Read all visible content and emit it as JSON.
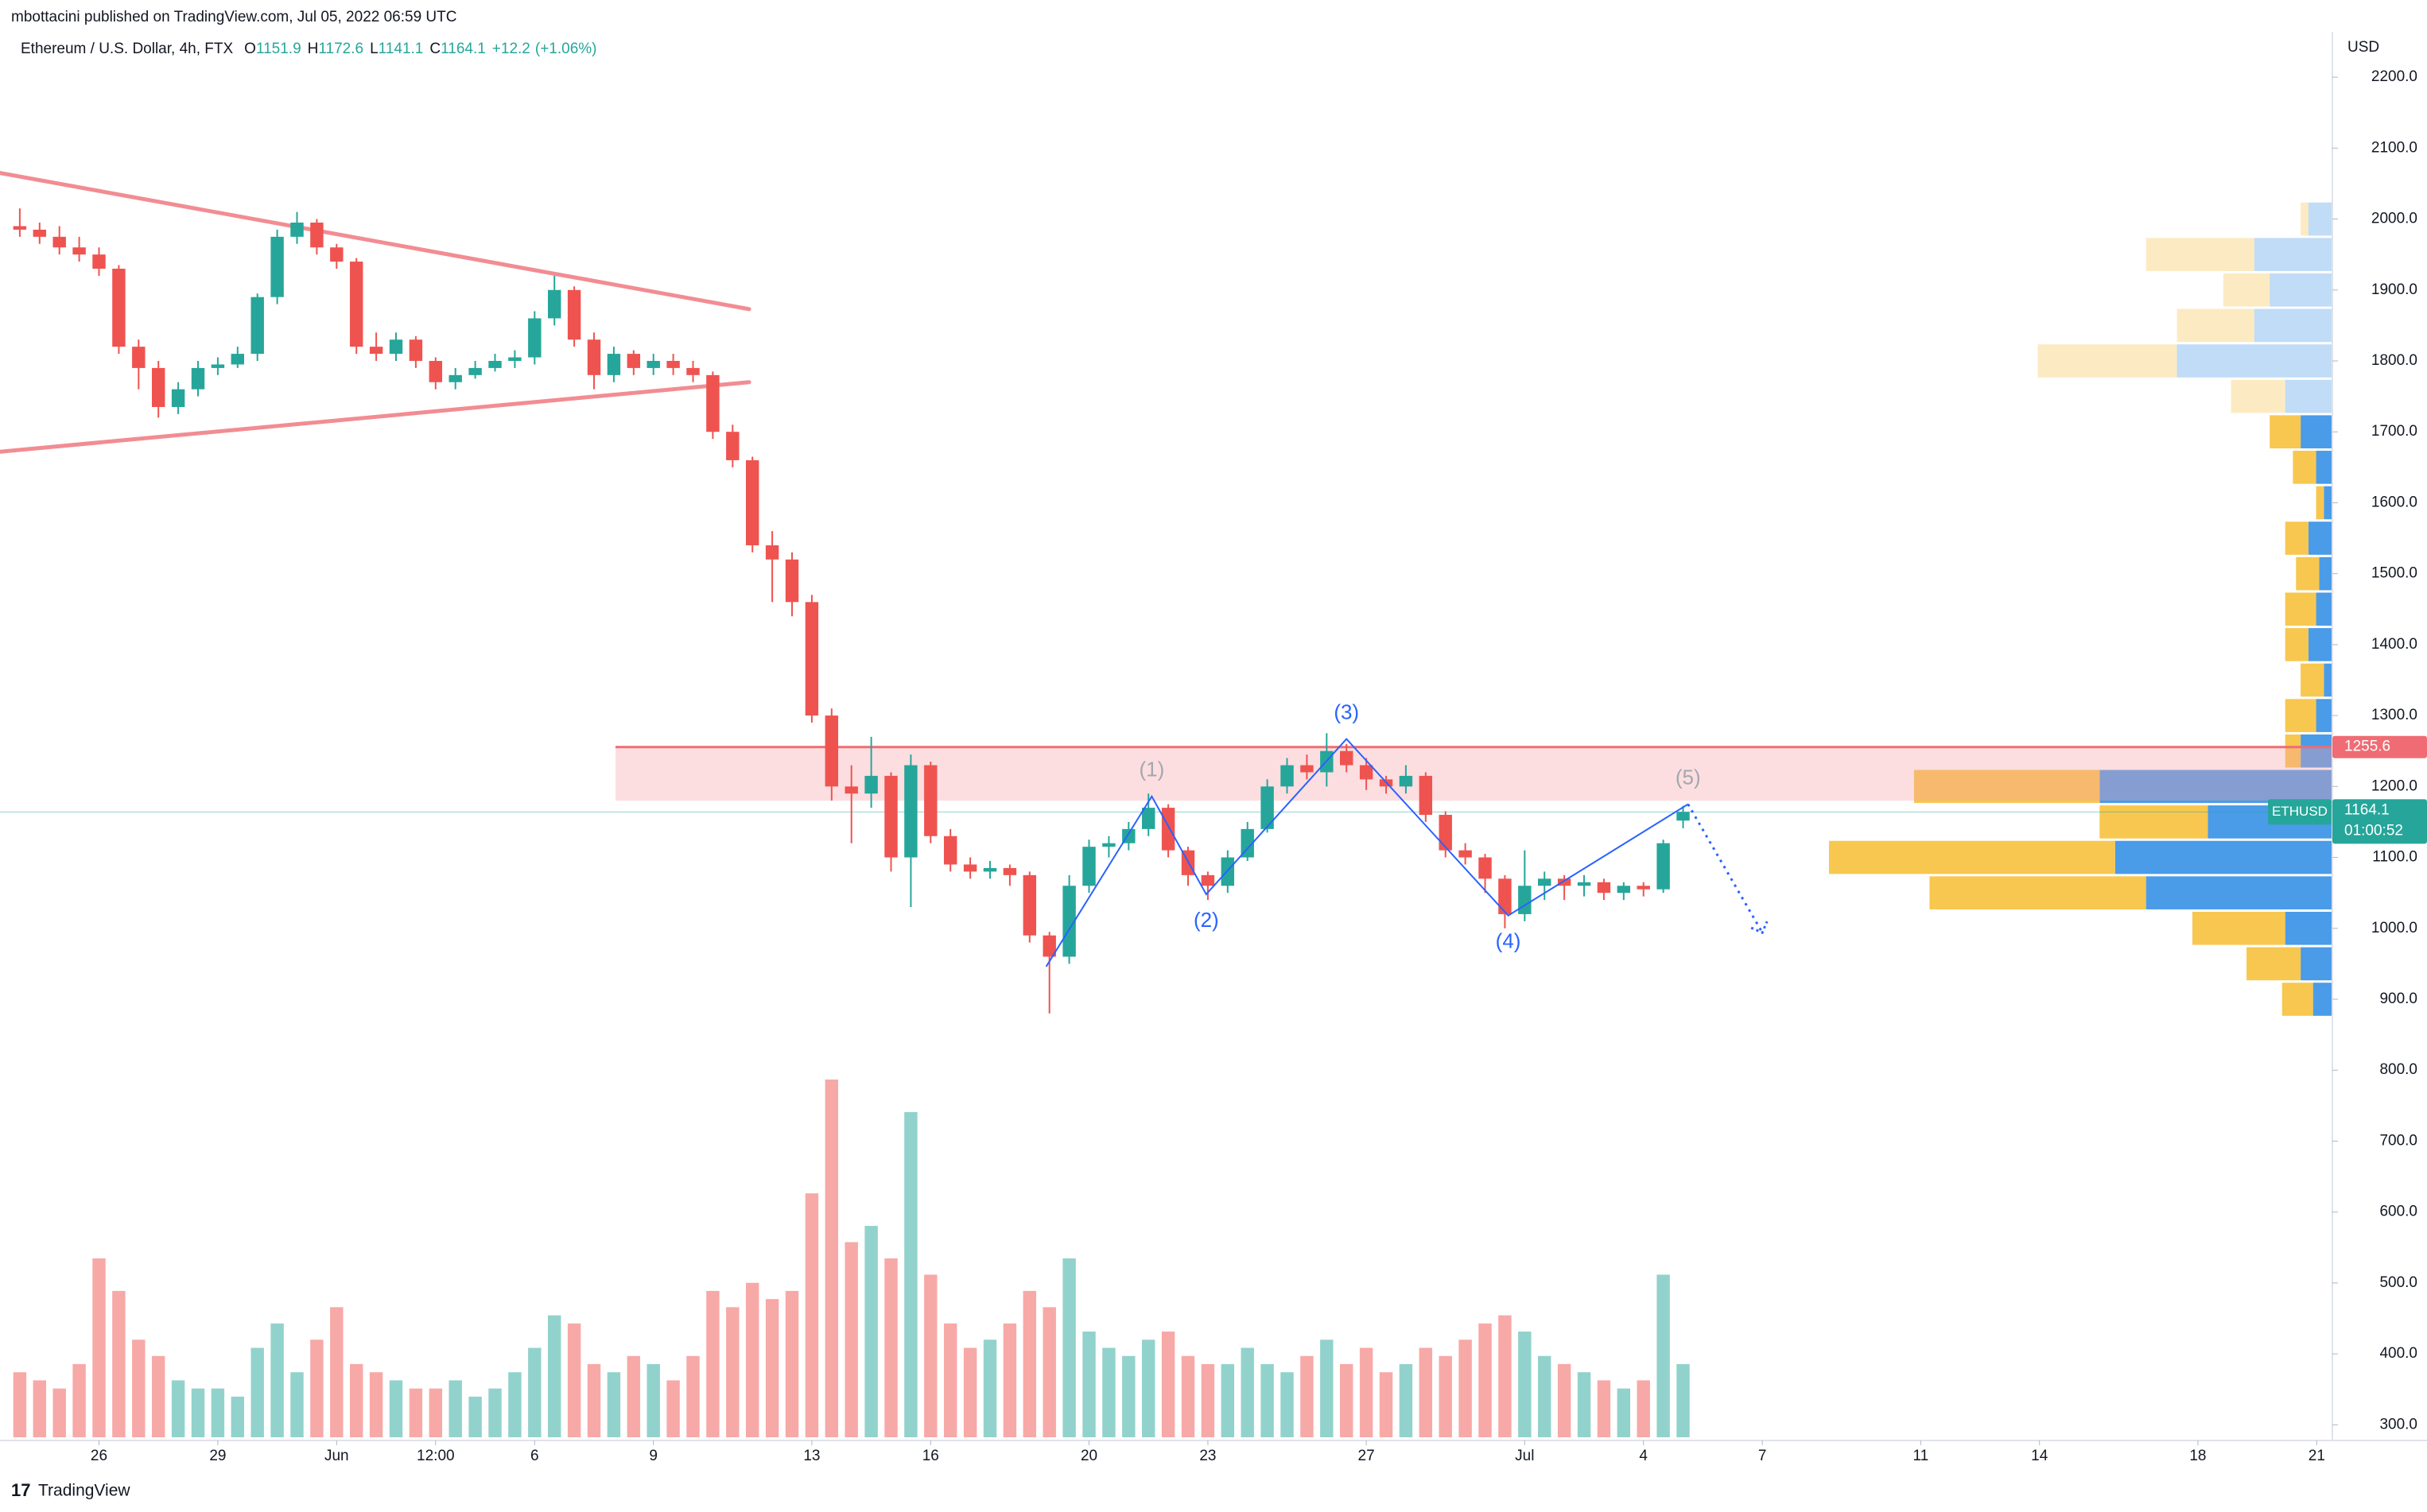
{
  "header": {
    "published": "mbottacini published on TradingView.com, Jul 05, 2022 06:59 UTC",
    "footer": "TradingView"
  },
  "chart_data": {
    "type": "candlestick",
    "legend": {
      "symbol": "Ethereum / U.S. Dollar, 4h, FTX",
      "ohlc": [
        {
          "key": "O",
          "value": 1151.9
        },
        {
          "key": "H",
          "value": 1172.6
        },
        {
          "key": "L",
          "value": 1141.1
        },
        {
          "key": "C",
          "value": 1164.1
        }
      ],
      "change": {
        "value": 12.2,
        "label": "+12.2"
      },
      "change_pct": {
        "value": 1.06,
        "label": "(+1.06%)"
      }
    },
    "currency": "USD",
    "up_color": "#26a69a",
    "down_color": "#ef5350",
    "xlim": [
      "2022-05-23T12:00",
      "2022-07-21T09:00"
    ],
    "xticks": [
      {
        "value": "2022-05-26T00:00",
        "label": "26"
      },
      {
        "value": "2022-05-29T00:00",
        "label": "29"
      },
      {
        "value": "2022-06-01T00:00",
        "label": "Jun"
      },
      {
        "value": "2022-06-03T12:00",
        "label": "12:00"
      },
      {
        "value": "2022-06-06T00:00",
        "label": "6"
      },
      {
        "value": "2022-06-09T00:00",
        "label": "9"
      },
      {
        "value": "2022-06-13T00:00",
        "label": "13"
      },
      {
        "value": "2022-06-16T00:00",
        "label": "16"
      },
      {
        "value": "2022-06-20T00:00",
        "label": "20"
      },
      {
        "value": "2022-06-23T00:00",
        "label": "23"
      },
      {
        "value": "2022-06-27T00:00",
        "label": "27"
      },
      {
        "value": "2022-07-01T00:00",
        "label": "Jul"
      },
      {
        "value": "2022-07-04T00:00",
        "label": "4"
      },
      {
        "value": "2022-07-07T00:00",
        "label": "7"
      },
      {
        "value": "2022-07-11T00:00",
        "label": "11"
      },
      {
        "value": "2022-07-14T00:00",
        "label": "14"
      },
      {
        "value": "2022-07-18T00:00",
        "label": "18"
      },
      {
        "value": "2022-07-21T00:00",
        "label": "21"
      }
    ],
    "ylim": [
      269,
      2264
    ],
    "yticks": [
      {
        "value": 300,
        "label": "300.0"
      },
      {
        "value": 400,
        "label": "400.0"
      },
      {
        "value": 500,
        "label": "500.0"
      },
      {
        "value": 600,
        "label": "600.0"
      },
      {
        "value": 700,
        "label": "700.0"
      },
      {
        "value": 800,
        "label": "800.0"
      },
      {
        "value": 900,
        "label": "900.0"
      },
      {
        "value": 1000,
        "label": "1000.0"
      },
      {
        "value": 1100,
        "label": "1100.0"
      },
      {
        "value": 1200,
        "label": "1200.0"
      },
      {
        "value": 1300,
        "label": "1300.0"
      },
      {
        "value": 1400,
        "label": "1400.0"
      },
      {
        "value": 1500,
        "label": "1500.0"
      },
      {
        "value": 1600,
        "label": "1600.0"
      },
      {
        "value": 1700,
        "label": "1700.0"
      },
      {
        "value": 1800,
        "label": "1800.0"
      },
      {
        "value": 1900,
        "label": "1900.0"
      },
      {
        "value": 2000,
        "label": "2000.0"
      },
      {
        "value": 2100,
        "label": "2100.0"
      },
      {
        "value": 2200,
        "label": "2200.0"
      }
    ],
    "grid": false,
    "x": [
      "2022-05-24T00:00",
      "2022-05-24T12:00",
      "2022-05-25T00:00",
      "2022-05-25T12:00",
      "2022-05-26T00:00",
      "2022-05-26T12:00",
      "2022-05-27T00:00",
      "2022-05-27T12:00",
      "2022-05-28T00:00",
      "2022-05-28T12:00",
      "2022-05-29T00:00",
      "2022-05-29T12:00",
      "2022-05-30T00:00",
      "2022-05-30T12:00",
      "2022-05-31T00:00",
      "2022-05-31T12:00",
      "2022-06-01T00:00",
      "2022-06-01T12:00",
      "2022-06-02T00:00",
      "2022-06-02T12:00",
      "2022-06-03T00:00",
      "2022-06-03T12:00",
      "2022-06-04T00:00",
      "2022-06-04T12:00",
      "2022-06-05T00:00",
      "2022-06-05T12:00",
      "2022-06-06T00:00",
      "2022-06-06T12:00",
      "2022-06-07T00:00",
      "2022-06-07T12:00",
      "2022-06-08T00:00",
      "2022-06-08T12:00",
      "2022-06-09T00:00",
      "2022-06-09T12:00",
      "2022-06-10T00:00",
      "2022-06-10T12:00",
      "2022-06-11T00:00",
      "2022-06-11T12:00",
      "2022-06-12T00:00",
      "2022-06-12T12:00",
      "2022-06-13T00:00",
      "2022-06-13T12:00",
      "2022-06-14T00:00",
      "2022-06-14T12:00",
      "2022-06-15T00:00",
      "2022-06-15T12:00",
      "2022-06-16T00:00",
      "2022-06-16T12:00",
      "2022-06-17T00:00",
      "2022-06-17T12:00",
      "2022-06-18T00:00",
      "2022-06-18T12:00",
      "2022-06-19T00:00",
      "2022-06-19T12:00",
      "2022-06-20T00:00",
      "2022-06-20T12:00",
      "2022-06-21T00:00",
      "2022-06-21T12:00",
      "2022-06-22T00:00",
      "2022-06-22T12:00",
      "2022-06-23T00:00",
      "2022-06-23T12:00",
      "2022-06-24T00:00",
      "2022-06-24T12:00",
      "2022-06-25T00:00",
      "2022-06-25T12:00",
      "2022-06-26T00:00",
      "2022-06-26T12:00",
      "2022-06-27T00:00",
      "2022-06-27T12:00",
      "2022-06-28T00:00",
      "2022-06-28T12:00",
      "2022-06-29T00:00",
      "2022-06-29T12:00",
      "2022-06-30T00:00",
      "2022-06-30T12:00",
      "2022-07-01T00:00",
      "2022-07-01T12:00",
      "2022-07-02T00:00",
      "2022-07-02T12:00",
      "2022-07-03T00:00",
      "2022-07-03T12:00",
      "2022-07-04T00:00",
      "2022-07-04T12:00",
      "2022-07-05T00:00"
    ],
    "open": [
      1990,
      1985,
      1975,
      1960,
      1950,
      1930,
      1820,
      1790,
      1735,
      1760,
      1790,
      1795,
      1810,
      1890,
      1975,
      1995,
      1960,
      1940,
      1820,
      1810,
      1830,
      1800,
      1770,
      1780,
      1790,
      1800,
      1805,
      1860,
      1900,
      1830,
      1780,
      1810,
      1790,
      1800,
      1790,
      1780,
      1700,
      1660,
      1540,
      1520,
      1460,
      1300,
      1200,
      1190,
      1215,
      1100,
      1230,
      1130,
      1090,
      1080,
      1085,
      1075,
      990,
      960,
      1060,
      1115,
      1120,
      1140,
      1170,
      1110,
      1075,
      1060,
      1100,
      1140,
      1200,
      1230,
      1220,
      1250,
      1230,
      1210,
      1200,
      1215,
      1160,
      1110,
      1100,
      1070,
      1020,
      1060,
      1070,
      1060,
      1065,
      1050,
      1060,
      1055,
      1151.9
    ],
    "high": [
      2015,
      1995,
      1990,
      1975,
      1960,
      1935,
      1830,
      1800,
      1770,
      1800,
      1805,
      1820,
      1895,
      1985,
      2010,
      2000,
      1965,
      1945,
      1840,
      1840,
      1835,
      1805,
      1790,
      1800,
      1810,
      1815,
      1870,
      1920,
      1905,
      1840,
      1820,
      1815,
      1810,
      1810,
      1800,
      1785,
      1710,
      1665,
      1560,
      1530,
      1470,
      1310,
      1230,
      1270,
      1220,
      1245,
      1235,
      1140,
      1100,
      1095,
      1090,
      1080,
      995,
      1075,
      1125,
      1130,
      1150,
      1190,
      1175,
      1115,
      1080,
      1110,
      1150,
      1210,
      1240,
      1245,
      1275,
      1260,
      1240,
      1215,
      1230,
      1220,
      1165,
      1120,
      1105,
      1075,
      1110,
      1080,
      1075,
      1075,
      1070,
      1065,
      1065,
      1125,
      1172.6
    ],
    "low": [
      1975,
      1965,
      1950,
      1940,
      1920,
      1810,
      1760,
      1720,
      1725,
      1750,
      1780,
      1790,
      1800,
      1880,
      1965,
      1950,
      1930,
      1810,
      1800,
      1800,
      1790,
      1760,
      1760,
      1775,
      1785,
      1790,
      1795,
      1850,
      1820,
      1760,
      1770,
      1780,
      1780,
      1780,
      1770,
      1690,
      1650,
      1530,
      1460,
      1440,
      1290,
      1180,
      1120,
      1170,
      1080,
      1030,
      1120,
      1080,
      1070,
      1070,
      1060,
      980,
      880,
      950,
      1050,
      1100,
      1110,
      1130,
      1100,
      1060,
      1040,
      1050,
      1095,
      1135,
      1190,
      1210,
      1200,
      1220,
      1195,
      1190,
      1190,
      1150,
      1100,
      1090,
      1050,
      1000,
      1010,
      1040,
      1040,
      1045,
      1040,
      1040,
      1045,
      1050,
      1141.1
    ],
    "close": [
      1985,
      1975,
      1960,
      1950,
      1930,
      1820,
      1790,
      1735,
      1760,
      1790,
      1795,
      1810,
      1890,
      1975,
      1995,
      1960,
      1940,
      1820,
      1810,
      1830,
      1800,
      1770,
      1780,
      1790,
      1800,
      1805,
      1860,
      1900,
      1830,
      1780,
      1810,
      1790,
      1800,
      1790,
      1780,
      1700,
      1660,
      1540,
      1520,
      1460,
      1300,
      1200,
      1190,
      1215,
      1100,
      1230,
      1130,
      1090,
      1080,
      1085,
      1075,
      990,
      960,
      1060,
      1115,
      1120,
      1140,
      1170,
      1110,
      1075,
      1060,
      1100,
      1140,
      1200,
      1230,
      1220,
      1250,
      1230,
      1210,
      1200,
      1215,
      1160,
      1110,
      1100,
      1070,
      1020,
      1060,
      1070,
      1060,
      1065,
      1050,
      1060,
      1055,
      1120,
      1164.1
    ],
    "volume": [
      40,
      35,
      30,
      45,
      110,
      90,
      60,
      50,
      35,
      30,
      30,
      25,
      55,
      70,
      40,
      60,
      80,
      45,
      40,
      35,
      30,
      30,
      35,
      25,
      30,
      40,
      55,
      75,
      70,
      45,
      40,
      50,
      45,
      35,
      50,
      90,
      80,
      95,
      85,
      90,
      150,
      220,
      120,
      130,
      110,
      200,
      100,
      70,
      55,
      60,
      70,
      90,
      80,
      110,
      65,
      55,
      50,
      60,
      65,
      50,
      45,
      45,
      55,
      45,
      40,
      50,
      60,
      45,
      55,
      40,
      45,
      55,
      50,
      60,
      70,
      75,
      65,
      50,
      45,
      40,
      35,
      30,
      35,
      100,
      45
    ],
    "volume_profile": {
      "prices": [
        900,
        950,
        1000,
        1050,
        1100,
        1150,
        1200,
        1250,
        1300,
        1350,
        1400,
        1450,
        1500,
        1550,
        1600,
        1650,
        1700,
        1750,
        1800,
        1850,
        1900,
        1950,
        2000
      ],
      "up": [
        12,
        20,
        30,
        120,
        140,
        80,
        150,
        20,
        10,
        5,
        15,
        10,
        8,
        15,
        5,
        10,
        20,
        30,
        100,
        50,
        40,
        50,
        15
      ],
      "down": [
        20,
        35,
        60,
        140,
        185,
        70,
        120,
        10,
        20,
        15,
        15,
        20,
        15,
        15,
        5,
        15,
        20,
        35,
        90,
        50,
        30,
        70,
        5
      ],
      "up_color": "#4a9be8",
      "down_color": "#f7c74f",
      "value_area": [
        880,
        1740
      ]
    },
    "triangle": {
      "color": "#f28c93",
      "lines": [
        {
          "x": [
            "2022-05-23T12:00",
            "2022-06-11T10:00"
          ],
          "y": [
            2065,
            1873
          ]
        },
        {
          "x": [
            "2022-05-23T12:00",
            "2022-06-11T10:00"
          ],
          "y": [
            1672,
            1770
          ]
        }
      ]
    },
    "zone": {
      "x_start": "2022-06-08T01:00",
      "bottom": 1180,
      "top": {
        "value": 1255.6,
        "label": "1255.6"
      },
      "color": "#f7a1a5",
      "line_color": "#f06c74"
    },
    "waves": {
      "x": [
        "2022-06-18T22:00",
        "2022-06-21T14:00",
        "2022-06-22T23:00",
        "2022-06-26T12:00",
        "2022-06-30T14:00",
        "2022-07-05T03:00"
      ],
      "y": [
        946,
        1186,
        1048,
        1267,
        1018,
        1175
      ],
      "labels": [
        null,
        "(1)",
        "(2)",
        "(3)",
        "(4)",
        "(5)"
      ],
      "label_colors": [
        null,
        "#a3a6af",
        "#2962ff",
        "#2962ff",
        "#2962ff",
        "#a3a6af"
      ],
      "line_color": "#2962ff",
      "projection": {
        "x": [
          "2022-07-05T03:00",
          "2022-07-07T00:00"
        ],
        "y": [
          1175,
          994
        ]
      }
    },
    "price_tag": {
      "symbol": "ETHUSD",
      "value": 1164.1,
      "countdown": "01:00:52"
    }
  }
}
